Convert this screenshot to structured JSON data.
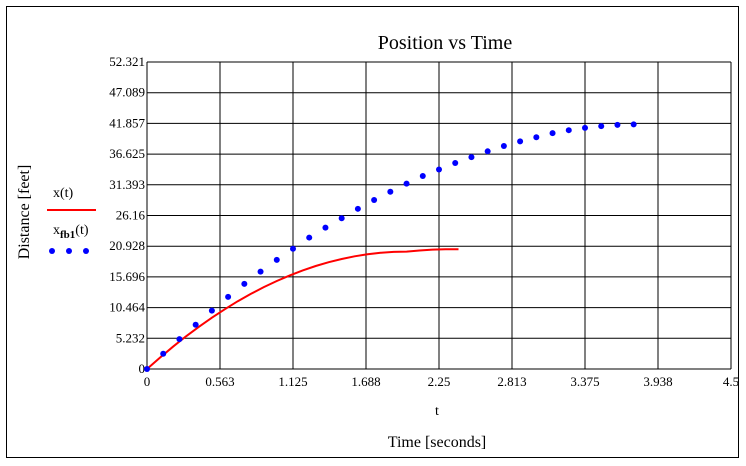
{
  "chart_data": {
    "type": "line",
    "title": "Position vs Time",
    "xlabel": "Time [seconds]",
    "x_variable": "t",
    "ylabel": "Distance [feet]",
    "xlim": [
      0,
      4.5
    ],
    "ylim": [
      0,
      52.321
    ],
    "x_ticks": [
      "0",
      "0.563",
      "1.125",
      "1.688",
      "2.25",
      "2.813",
      "3.375",
      "3.938",
      "4.5"
    ],
    "y_ticks": [
      "0",
      "5.232",
      "10.464",
      "15.696",
      "20.928",
      "26.16",
      "31.393",
      "36.625",
      "41.857",
      "47.089",
      "52.321"
    ],
    "grid": true,
    "legend_position": "left",
    "series": [
      {
        "name": "x(t)",
        "style": "line",
        "color": "#ff0000",
        "x": [
          0,
          0.1,
          0.2,
          0.3,
          0.4,
          0.5,
          0.6,
          0.7,
          0.8,
          0.9,
          1.0,
          1.1,
          1.2,
          1.3,
          1.4,
          1.5,
          1.6,
          1.7,
          1.8,
          1.9,
          2.0,
          2.1,
          2.2,
          2.3,
          2.4
        ],
        "y": [
          0,
          1.95,
          3.8,
          5.55,
          7.2,
          8.75,
          10.2,
          11.55,
          12.8,
          13.95,
          15.0,
          15.95,
          16.8,
          17.55,
          18.2,
          18.75,
          19.2,
          19.55,
          19.8,
          19.95,
          20.0,
          20.2,
          20.35,
          20.4,
          20.4
        ]
      },
      {
        "name": "x",
        "name_subscript": "fb1",
        "name_suffix": "(t)",
        "style": "dots",
        "color": "#0000ff",
        "x": [
          0,
          0.125,
          0.25,
          0.375,
          0.5,
          0.625,
          0.75,
          0.875,
          1.0,
          1.125,
          1.25,
          1.375,
          1.5,
          1.625,
          1.75,
          1.875,
          2.0,
          2.125,
          2.25,
          2.375,
          2.5,
          2.625,
          2.75,
          2.875,
          3.0,
          3.125,
          3.25,
          3.375,
          3.5,
          3.625,
          3.75
        ],
        "y": [
          0,
          2.6,
          5.1,
          7.55,
          9.95,
          12.3,
          14.5,
          16.6,
          18.6,
          20.5,
          22.4,
          24.1,
          25.7,
          27.3,
          28.8,
          30.2,
          31.6,
          32.9,
          34.0,
          35.1,
          36.1,
          37.1,
          38.0,
          38.8,
          39.5,
          40.2,
          40.7,
          41.1,
          41.4,
          41.6,
          41.7
        ]
      }
    ]
  }
}
